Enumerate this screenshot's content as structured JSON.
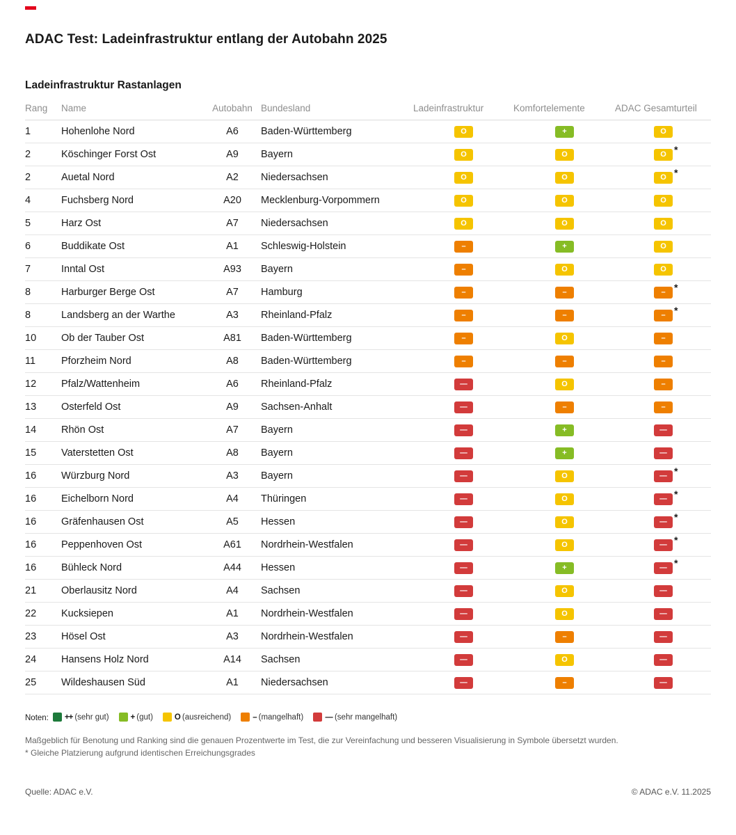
{
  "page": {
    "title": "ADAC Test: Ladeinfrastruktur entlang der Autobahn 2025"
  },
  "ratings": {
    "++": {
      "display": "++",
      "color": "#1d7a3b",
      "legend_label": "(sehr gut)"
    },
    "+": {
      "display": "+",
      "color": "#86bc25",
      "legend_label": "(gut)"
    },
    "O": {
      "display": "O",
      "color": "#f5c400",
      "legend_label": "(ausreichend)"
    },
    "-": {
      "display": "–",
      "color": "#ee7f00",
      "legend_label": "(mangelhaft)"
    },
    "--": {
      "display": "––",
      "color": "#d23b3b",
      "legend_label": "(sehr mangelhaft)"
    }
  },
  "chart_data": {
    "type": "table",
    "title": "Ladeinfrastruktur Rastanlagen",
    "columns": [
      {
        "key": "rank",
        "label": "Rang"
      },
      {
        "key": "name",
        "label": "Name"
      },
      {
        "key": "autobahn",
        "label": "Autobahn"
      },
      {
        "key": "bundesland",
        "label": "Bundesland"
      },
      {
        "key": "lade",
        "label": "Ladeinfrastruktur"
      },
      {
        "key": "komfort",
        "label": "Komfortelemente"
      },
      {
        "key": "gesamt",
        "label": "ADAC Gesamturteil"
      }
    ],
    "rows": [
      {
        "rank": "1",
        "name": "Hohenlohe Nord",
        "autobahn": "A6",
        "bundesland": "Baden-Württemberg",
        "lade": "O",
        "komfort": "+",
        "gesamt": "O",
        "star": false
      },
      {
        "rank": "2",
        "name": "Köschinger Forst Ost",
        "autobahn": "A9",
        "bundesland": "Bayern",
        "lade": "O",
        "komfort": "O",
        "gesamt": "O",
        "star": true
      },
      {
        "rank": "2",
        "name": "Auetal Nord",
        "autobahn": "A2",
        "bundesland": "Niedersachsen",
        "lade": "O",
        "komfort": "O",
        "gesamt": "O",
        "star": true
      },
      {
        "rank": "4",
        "name": "Fuchsberg Nord",
        "autobahn": "A20",
        "bundesland": "Mecklenburg-Vorpommern",
        "lade": "O",
        "komfort": "O",
        "gesamt": "O",
        "star": false
      },
      {
        "rank": "5",
        "name": "Harz Ost",
        "autobahn": "A7",
        "bundesland": "Niedersachsen",
        "lade": "O",
        "komfort": "O",
        "gesamt": "O",
        "star": false
      },
      {
        "rank": "6",
        "name": "Buddikate Ost",
        "autobahn": "A1",
        "bundesland": "Schleswig-Holstein",
        "lade": "-",
        "komfort": "+",
        "gesamt": "O",
        "star": false
      },
      {
        "rank": "7",
        "name": "Inntal Ost",
        "autobahn": "A93",
        "bundesland": "Bayern",
        "lade": "-",
        "komfort": "O",
        "gesamt": "O",
        "star": false
      },
      {
        "rank": "8",
        "name": "Harburger Berge Ost",
        "autobahn": "A7",
        "bundesland": "Hamburg",
        "lade": "-",
        "komfort": "-",
        "gesamt": "-",
        "star": true
      },
      {
        "rank": "8",
        "name": "Landsberg an der Warthe",
        "autobahn": "A3",
        "bundesland": "Rheinland-Pfalz",
        "lade": "-",
        "komfort": "-",
        "gesamt": "-",
        "star": true
      },
      {
        "rank": "10",
        "name": "Ob der Tauber Ost",
        "autobahn": "A81",
        "bundesland": "Baden-Württemberg",
        "lade": "-",
        "komfort": "O",
        "gesamt": "-",
        "star": false
      },
      {
        "rank": "11",
        "name": "Pforzheim Nord",
        "autobahn": "A8",
        "bundesland": "Baden-Württemberg",
        "lade": "-",
        "komfort": "-",
        "gesamt": "-",
        "star": false
      },
      {
        "rank": "12",
        "name": "Pfalz/Wattenheim",
        "autobahn": "A6",
        "bundesland": "Rheinland-Pfalz",
        "lade": "--",
        "komfort": "O",
        "gesamt": "-",
        "star": false
      },
      {
        "rank": "13",
        "name": "Osterfeld Ost",
        "autobahn": "A9",
        "bundesland": "Sachsen-Anhalt",
        "lade": "--",
        "komfort": "-",
        "gesamt": "-",
        "star": false
      },
      {
        "rank": "14",
        "name": "Rhön Ost",
        "autobahn": "A7",
        "bundesland": "Bayern",
        "lade": "--",
        "komfort": "+",
        "gesamt": "--",
        "star": false
      },
      {
        "rank": "15",
        "name": "Vaterstetten Ost",
        "autobahn": "A8",
        "bundesland": "Bayern",
        "lade": "--",
        "komfort": "+",
        "gesamt": "--",
        "star": false
      },
      {
        "rank": "16",
        "name": "Würzburg Nord",
        "autobahn": "A3",
        "bundesland": "Bayern",
        "lade": "--",
        "komfort": "O",
        "gesamt": "--",
        "star": true
      },
      {
        "rank": "16",
        "name": "Eichelborn Nord",
        "autobahn": "A4",
        "bundesland": "Thüringen",
        "lade": "--",
        "komfort": "O",
        "gesamt": "--",
        "star": true
      },
      {
        "rank": "16",
        "name": "Gräfenhausen Ost",
        "autobahn": "A5",
        "bundesland": "Hessen",
        "lade": "--",
        "komfort": "O",
        "gesamt": "--",
        "star": true
      },
      {
        "rank": "16",
        "name": "Peppenhoven Ost",
        "autobahn": "A61",
        "bundesland": "Nordrhein-Westfalen",
        "lade": "--",
        "komfort": "O",
        "gesamt": "--",
        "star": true
      },
      {
        "rank": "16",
        "name": "Bühleck Nord",
        "autobahn": "A44",
        "bundesland": "Hessen",
        "lade": "--",
        "komfort": "+",
        "gesamt": "--",
        "star": true
      },
      {
        "rank": "21",
        "name": "Oberlausitz Nord",
        "autobahn": "A4",
        "bundesland": "Sachsen",
        "lade": "--",
        "komfort": "O",
        "gesamt": "--",
        "star": false
      },
      {
        "rank": "22",
        "name": "Kucksiepen",
        "autobahn": "A1",
        "bundesland": "Nordrhein-Westfalen",
        "lade": "--",
        "komfort": "O",
        "gesamt": "--",
        "star": false
      },
      {
        "rank": "23",
        "name": "Hösel Ost",
        "autobahn": "A3",
        "bundesland": "Nordrhein-Westfalen",
        "lade": "--",
        "komfort": "-",
        "gesamt": "--",
        "star": false
      },
      {
        "rank": "24",
        "name": "Hansens Holz Nord",
        "autobahn": "A14",
        "bundesland": "Sachsen",
        "lade": "--",
        "komfort": "O",
        "gesamt": "--",
        "star": false
      },
      {
        "rank": "25",
        "name": "Wildeshausen Süd",
        "autobahn": "A1",
        "bundesland": "Niedersachsen",
        "lade": "--",
        "komfort": "-",
        "gesamt": "--",
        "star": false
      }
    ]
  },
  "legend": {
    "label": "Noten:",
    "order": [
      "++",
      "+",
      "O",
      "-",
      "--"
    ]
  },
  "notes": [
    "Maßgeblich für Benotung und Ranking sind die genauen Prozentwerte im Test, die zur Vereinfachung und besseren Visualisierung in Symbole übersetzt wurden.",
    "* Gleiche Platzierung aufgrund identischen Erreichungsgrades"
  ],
  "footer": {
    "source": "Quelle: ADAC e.V.",
    "copyright": "© ADAC e.V. 11.2025"
  }
}
